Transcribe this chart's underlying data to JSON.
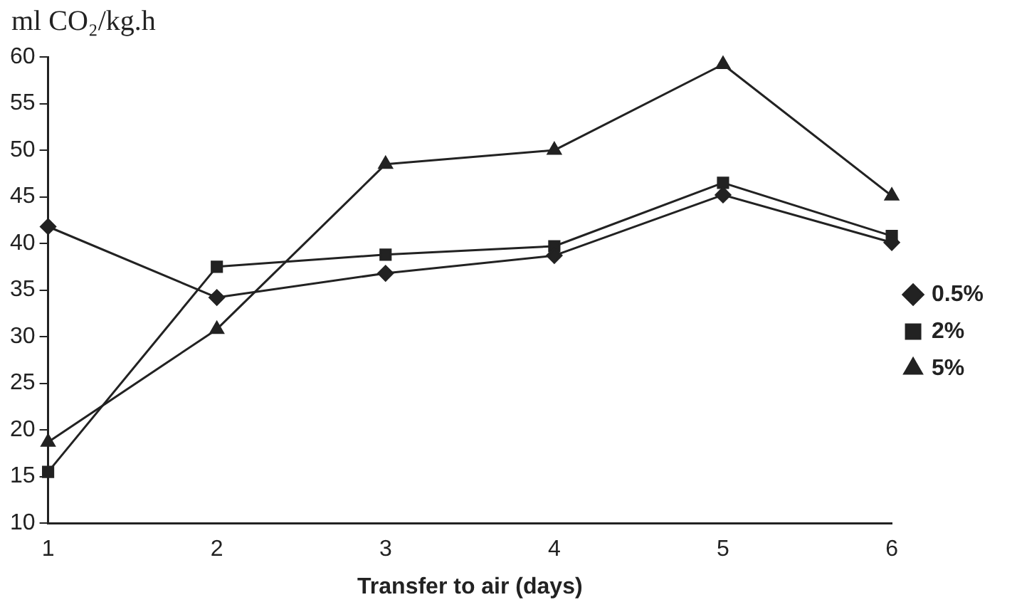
{
  "chart_data": {
    "type": "line",
    "ylabel": "ml CO₂/kg.h",
    "xlabel": "Transfer to air (days)",
    "x": [
      1,
      2,
      3,
      4,
      5,
      6
    ],
    "xlim": [
      1,
      6
    ],
    "xticks": [
      1,
      2,
      3,
      4,
      5,
      6
    ],
    "ylim": [
      10,
      60
    ],
    "yticks": [
      10,
      15,
      20,
      25,
      30,
      35,
      40,
      45,
      50,
      55,
      60
    ],
    "grid": false,
    "legend": "right",
    "series": [
      {
        "name": "0.5%",
        "color": "#222222",
        "marker": "diamond",
        "values": [
          41.8,
          34.2,
          36.8,
          38.7,
          45.2,
          40.1
        ]
      },
      {
        "name": "2%",
        "color": "#222222",
        "marker": "square",
        "values": [
          15.5,
          37.5,
          38.8,
          39.7,
          46.5,
          40.8
        ]
      },
      {
        "name": "5%",
        "color": "#222222",
        "marker": "triangle",
        "values": [
          18.7,
          30.8,
          48.5,
          50,
          59.2,
          45.1
        ]
      }
    ]
  }
}
